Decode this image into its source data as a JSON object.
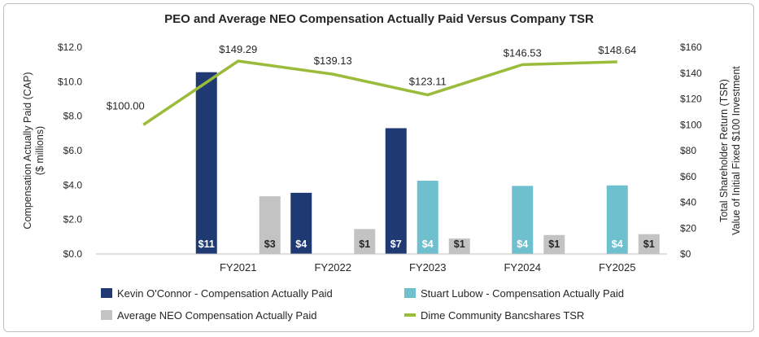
{
  "chart_data": {
    "type": "bar",
    "title": "PEO and Average NEO Compensation Actually Paid Versus Company TSR",
    "categories": [
      "",
      "FY2021",
      "FY2022",
      "FY2023",
      "FY2024",
      "FY2025"
    ],
    "y_left": {
      "label_line1": "Compensation Actually Paid (CAP)",
      "label_line2": "($ millions)",
      "min": 0,
      "max": 12,
      "step": 2,
      "ticks": [
        "$0.0",
        "$2.0",
        "$4.0",
        "$6.0",
        "$8.0",
        "$10.0",
        "$12.0"
      ]
    },
    "y_right": {
      "label_line1": "Total Shareholder Return (TSR)",
      "label_line2": "Value of Initial Fixed $100 Investment",
      "min": 0,
      "max": 160,
      "step": 20,
      "ticks": [
        "$0",
        "$20",
        "$40",
        "$60",
        "$80",
        "$100",
        "$120",
        "$140",
        "$160"
      ]
    },
    "series": [
      {
        "name": "Kevin O'Connor - Compensation Actually Paid",
        "color": "#1f3a73",
        "axis": "left",
        "values": [
          null,
          10.55,
          3.55,
          7.3,
          null,
          null
        ],
        "labels": [
          "",
          "$11",
          "$4",
          "$7",
          "",
          ""
        ]
      },
      {
        "name": "Stuart Lubow - Compensation Actually Paid",
        "color": "#6fc0cf",
        "axis": "left",
        "values": [
          null,
          null,
          null,
          4.25,
          3.95,
          3.98
        ],
        "labels": [
          "",
          "",
          "",
          "$4",
          "$4",
          "$4"
        ]
      },
      {
        "name": "Average NEO Compensation Actually Paid",
        "color": "#c3c3c3",
        "axis": "left",
        "values": [
          null,
          3.35,
          1.45,
          0.9,
          1.1,
          1.15
        ],
        "labels": [
          "",
          "$3",
          "$1",
          "$1",
          "$1",
          "$1"
        ]
      },
      {
        "name": "Dime Community Bancshares TSR",
        "color": "#9bbb3b",
        "axis": "right",
        "type": "line",
        "values": [
          100.0,
          149.29,
          139.13,
          123.11,
          146.53,
          148.64
        ],
        "labels": [
          "$100.00",
          "$149.29",
          "$139.13",
          "$123.11",
          "$146.53",
          "$148.64"
        ]
      }
    ],
    "legend_position": "bottom",
    "grid": false
  }
}
